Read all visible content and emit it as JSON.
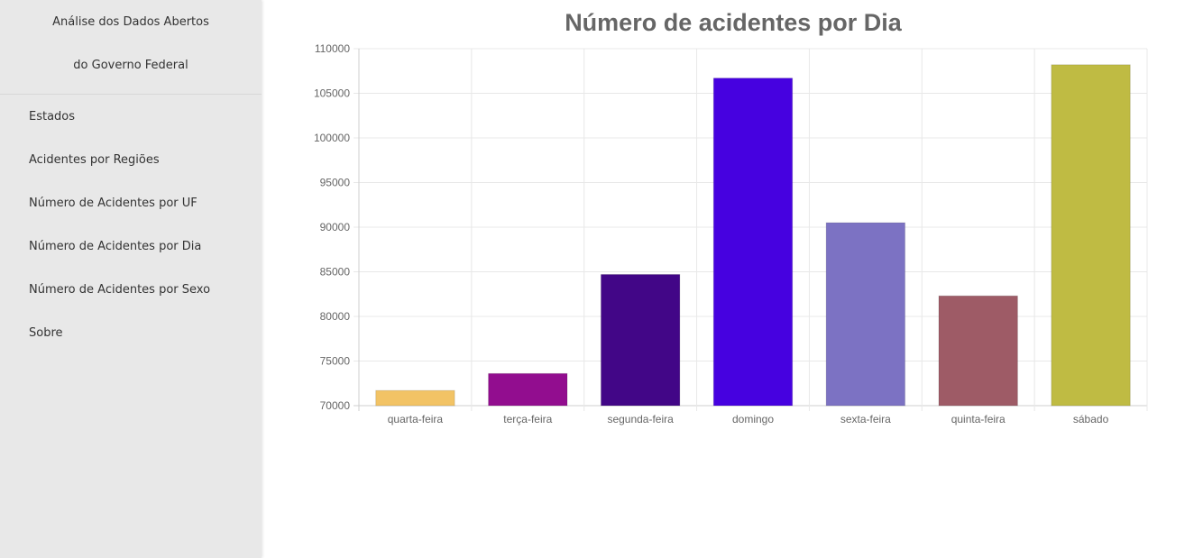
{
  "sidebar": {
    "title_line1": "Análise dos Dados Abertos",
    "title_line2": "do Governo Federal",
    "items": [
      {
        "label": "Estados"
      },
      {
        "label": "Acidentes por Regiões"
      },
      {
        "label": "Número de Acidentes por UF"
      },
      {
        "label": "Número de Acidentes por Dia"
      },
      {
        "label": "Número de Acidentes por Sexo"
      },
      {
        "label": "Sobre"
      }
    ]
  },
  "chart_data": {
    "type": "bar",
    "title": "Número de acidentes por Dia",
    "categories": [
      "quarta-feira",
      "terça-feira",
      "segunda-feira",
      "domingo",
      "sexta-feira",
      "quinta-feira",
      "sábado"
    ],
    "values": [
      71700,
      73600,
      84700,
      106700,
      90500,
      82300,
      108200
    ],
    "colors": [
      "#f2c365",
      "#920d8f",
      "#420687",
      "#4601e0",
      "#7c72c3",
      "#9e5b66",
      "#bfbb43"
    ],
    "ylim": [
      70000,
      110000
    ],
    "yticks": [
      70000,
      75000,
      80000,
      85000,
      90000,
      95000,
      100000,
      105000,
      110000
    ],
    "grid": true,
    "legend": "none"
  }
}
